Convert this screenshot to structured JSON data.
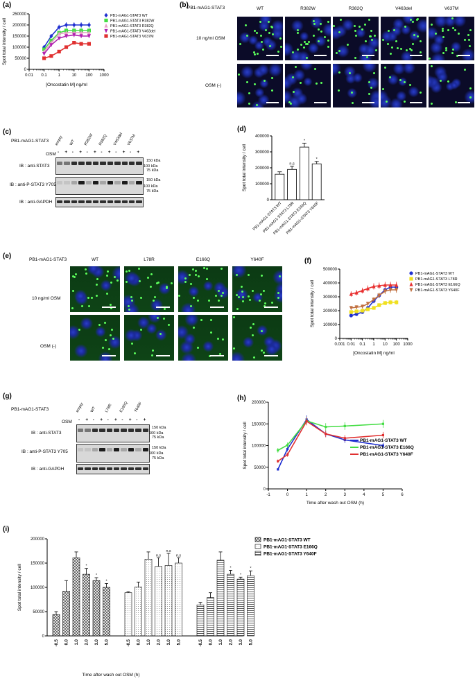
{
  "panels": {
    "a": {
      "label": "(a)"
    },
    "b": {
      "label": "(b)",
      "construct": "PB1-mAG1-STAT3",
      "columns": [
        "WT",
        "R382W",
        "R382Q",
        "V463del",
        "V637M"
      ],
      "rows": [
        "10 ng/ml OSM",
        "OSM (-)"
      ]
    },
    "c": {
      "label": "(c)",
      "construct": "PB1-mAG1-STAT3",
      "lanes": [
        "empty",
        "WT",
        "R382W",
        "R382Q",
        "V463del",
        "V637M"
      ],
      "osm_label": "OSM",
      "osm_signs": [
        "-",
        "+",
        "-",
        "+",
        "-",
        "+",
        "-",
        "+",
        "-",
        "+",
        "-",
        "+"
      ],
      "blots": [
        "IB : anti-STAT3",
        "IB : anti-P-STAT3 Y705",
        "IB : anti-GAPDH"
      ],
      "markers": [
        "150 kDa",
        "100 kDa",
        "75 kDa"
      ]
    },
    "d": {
      "label": "(d)"
    },
    "e": {
      "label": "(e)",
      "construct": "PB1-mAG1-STAT3",
      "columns": [
        "WT",
        "L78R",
        "E166Q",
        "Y640F"
      ],
      "rows": [
        "10 ng/ml OSM",
        "OSM (-)"
      ]
    },
    "f": {
      "label": "(f)"
    },
    "g": {
      "label": "(g)",
      "construct": "PB1-mAG1-STAT3",
      "lanes": [
        "empty",
        "WT",
        "L78R",
        "E166Q",
        "Y640F"
      ],
      "osm_label": "OSM",
      "osm_signs": [
        "-",
        "+",
        "-",
        "+",
        "-",
        "+",
        "-",
        "+",
        "-",
        "+"
      ],
      "blots": [
        "IB : anti-STAT3",
        "IB : anti-P-STAT3 Y705",
        "IB : anti-GAPDH"
      ],
      "markers": [
        "150 kDa",
        "100 kDa",
        "75 kDa"
      ]
    },
    "h": {
      "label": "(h)"
    },
    "i": {
      "label": "(i)"
    }
  },
  "chart_data": [
    {
      "id": "a",
      "type": "line",
      "xscale": "log",
      "xlabel": "[Oncostatin M] ng/ml",
      "ylabel": "Spot total intensity / cell",
      "xlim": [
        0.01,
        1000
      ],
      "ylim": [
        0,
        250000
      ],
      "xticks": [
        "0.01",
        "0.1",
        "1",
        "10",
        "100",
        "1000"
      ],
      "yticks": [
        "0",
        "50000",
        "100000",
        "150000",
        "200000",
        "250000"
      ],
      "x": [
        0.1,
        0.3,
        1,
        3,
        10,
        30,
        100
      ],
      "series": [
        {
          "name": "PB1-mAG1-STAT3 WT",
          "color": "#1f2fd0",
          "marker": "diamond",
          "values": [
            100000,
            150000,
            190000,
            200000,
            200000,
            200000,
            200000
          ]
        },
        {
          "name": "PB1-mAG1-STAT3 R382W",
          "color": "#44dd44",
          "marker": "square",
          "values": [
            90000,
            130000,
            165000,
            175000,
            175000,
            175000,
            175000
          ]
        },
        {
          "name": "PB1-mAG1-STAT3 R382Q",
          "color": "#e8a0c8",
          "marker": "triangle",
          "values": [
            80000,
            120000,
            160000,
            165000,
            165000,
            165000,
            165000
          ]
        },
        {
          "name": "PB1-mAG1-STAT3 V463del",
          "color": "#b020b0",
          "marker": "triangle-down",
          "values": [
            70000,
            110000,
            140000,
            150000,
            155000,
            150000,
            150000
          ]
        },
        {
          "name": "PB1-mAG1-STAT3 V637M",
          "color": "#e03030",
          "marker": "square",
          "values": [
            50000,
            60000,
            80000,
            100000,
            120000,
            115000,
            115000
          ]
        }
      ]
    },
    {
      "id": "d",
      "type": "bar",
      "ylabel": "Spot total intensity / cell",
      "ylim": [
        0,
        400000
      ],
      "yticks": [
        "0",
        "100000",
        "200000",
        "300000",
        "400000"
      ],
      "categories": [
        "PB1-mAG1-STAT3 WT",
        "PB1-mAG1-STAT3 L78R",
        "PB1-mAG1-STAT3 E166Q",
        "PB1-mAG1-STAT3 Y640F"
      ],
      "values": [
        160000,
        190000,
        330000,
        225000
      ],
      "errors": [
        15000,
        20000,
        25000,
        15000
      ],
      "annotations": [
        "",
        "n.s",
        "*",
        "*"
      ]
    },
    {
      "id": "f",
      "type": "line",
      "xscale": "log",
      "xlabel": "[Oncostatin M] ng/ml",
      "ylabel": "Spot total intensity / cell",
      "xlim": [
        0.001,
        1000
      ],
      "ylim": [
        0,
        500000
      ],
      "xticks": [
        "0.001",
        "0.01",
        "0.1",
        "1",
        "10",
        "100",
        "1000"
      ],
      "yticks": [
        "0",
        "100000",
        "200000",
        "300000",
        "400000",
        "500000"
      ],
      "x": [
        0.01,
        0.03,
        0.1,
        0.3,
        1,
        3,
        10,
        30,
        100
      ],
      "series": [
        {
          "name": "PB1-mAG1-STAT3 WT",
          "color": "#1f2fd0",
          "marker": "circle",
          "values": [
            165000,
            175000,
            190000,
            220000,
            270000,
            310000,
            350000,
            370000,
            370000
          ]
        },
        {
          "name": "PB1-mAG1-STAT3 L78R",
          "color": "#f0e020",
          "marker": "square",
          "values": [
            190000,
            195000,
            200000,
            210000,
            220000,
            240000,
            255000,
            260000,
            260000
          ]
        },
        {
          "name": "PB1-mAG1-STAT3 E166Q",
          "color": "#e83030",
          "marker": "triangle",
          "values": [
            320000,
            330000,
            345000,
            360000,
            375000,
            380000,
            385000,
            385000,
            385000
          ]
        },
        {
          "name": "PB1-mAG1-STAT3 Y640F",
          "color": "#c07040",
          "marker": "triangle-down",
          "values": [
            220000,
            225000,
            230000,
            250000,
            280000,
            310000,
            340000,
            350000,
            350000
          ]
        }
      ]
    },
    {
      "id": "h",
      "type": "line",
      "xlabel": "Time after wash out OSM (h)",
      "ylabel": "Spot total intensity / cell",
      "xlim": [
        -1,
        6
      ],
      "ylim": [
        0,
        200000
      ],
      "xticks": [
        "-1",
        "0",
        "1",
        "2",
        "3",
        "4",
        "5",
        "6"
      ],
      "yticks": [
        "0",
        "50000",
        "100000",
        "150000",
        "200000"
      ],
      "x": [
        -0.5,
        0,
        1,
        2,
        3,
        5
      ],
      "series": [
        {
          "name": "PB1-mAG1-STAT3 WT",
          "color": "#1f2fd0",
          "values": [
            45000,
            92000,
            160000,
            127000,
            113000,
            100000
          ]
        },
        {
          "name": "PB1-mAG1-STAT3 E166Q",
          "color": "#44dd44",
          "values": [
            89000,
            101000,
            157000,
            143000,
            145000,
            150000
          ]
        },
        {
          "name": "PB1-mAG1-STAT3 Y640F",
          "color": "#e03030",
          "values": [
            64000,
            79000,
            156000,
            127000,
            117000,
            124000
          ]
        }
      ]
    },
    {
      "id": "i",
      "type": "bar",
      "xlabel": "Time after wash out OSM (h)",
      "ylabel": "Spot total intensity / cell",
      "ylim": [
        0,
        200000
      ],
      "yticks": [
        "0",
        "50000",
        "100000",
        "150000",
        "200000"
      ],
      "categories": [
        "-0.5",
        "0.0",
        "1.0",
        "2.0",
        "3.0",
        "5.0"
      ],
      "series": [
        {
          "name": "PB1-mAG1-STAT3 WT",
          "pattern": "cross",
          "values": [
            44000,
            92000,
            161000,
            127000,
            114000,
            100000
          ],
          "errors": [
            6000,
            22000,
            12000,
            12000,
            6000,
            8000
          ],
          "annotations": [
            "",
            "",
            "",
            "*",
            "*",
            "*"
          ]
        },
        {
          "name": "PB1-mAG1-STAT3 E166Q",
          "pattern": "dots",
          "values": [
            89000,
            101000,
            158000,
            143000,
            145000,
            150000
          ],
          "errors": [
            2000,
            10000,
            15000,
            18000,
            25000,
            11000
          ],
          "annotations": [
            "",
            "",
            "",
            "n.s",
            "n.s",
            "n.s"
          ]
        },
        {
          "name": "PB1-mAG1-STAT3 Y640F",
          "pattern": "hlines",
          "values": [
            64000,
            79000,
            156000,
            127000,
            117000,
            124000
          ],
          "errors": [
            5000,
            10000,
            17000,
            8000,
            4000,
            10000
          ],
          "annotations": [
            "",
            "",
            "",
            "*",
            "*",
            "*"
          ]
        }
      ]
    }
  ]
}
